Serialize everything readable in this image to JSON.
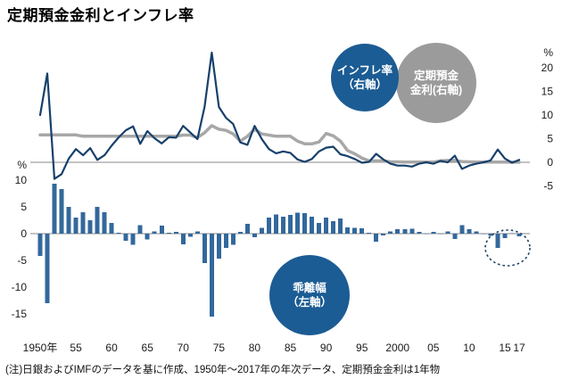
{
  "title": "定期預金金利とインフレ率",
  "note": "(注)日銀およびIMFのデータを基に作成、1950年～2017年の年次データ、定期預金金利は1年物",
  "colors": {
    "inflation_line": "#17406b",
    "deposit_line": "#a7a7a7",
    "deviation_bars": "#33689c",
    "badge_blue": "#1c5c94",
    "badge_gray": "#9b9b9b",
    "axis_line": "#8a8a8a",
    "highlight": "#1b4168"
  },
  "legend": {
    "inflation": {
      "line1": "インフレ率",
      "line2": "（右軸）"
    },
    "deposit": {
      "line1": "定期預金",
      "line2": "金利(右軸)"
    },
    "deviation": {
      "line1": "乖離幅",
      "line2": "（左軸）"
    }
  },
  "right_axis": {
    "unit": "%",
    "ticks": [
      20,
      15,
      10,
      5,
      0,
      -5
    ]
  },
  "left_axis": {
    "unit": "%",
    "ticks": [
      10,
      5,
      0,
      -5,
      -10,
      -15
    ]
  },
  "x_axis": {
    "labels": [
      {
        "year": 1950,
        "label": "1950年"
      },
      {
        "year": 1955,
        "label": "55"
      },
      {
        "year": 1960,
        "label": "60"
      },
      {
        "year": 1965,
        "label": "65"
      },
      {
        "year": 1970,
        "label": "70"
      },
      {
        "year": 1975,
        "label": "75"
      },
      {
        "year": 1980,
        "label": "80"
      },
      {
        "year": 1985,
        "label": "85"
      },
      {
        "year": 1990,
        "label": "90"
      },
      {
        "year": 1995,
        "label": "95"
      },
      {
        "year": 2000,
        "label": "2000"
      },
      {
        "year": 2005,
        "label": "05"
      },
      {
        "year": 2010,
        "label": "10"
      },
      {
        "year": 2015,
        "label": "15"
      },
      {
        "year": 2017,
        "label": "17"
      }
    ]
  },
  "chart_data": {
    "type": "line+bar",
    "title": "定期預金金利とインフレ率",
    "x": [
      1950,
      1951,
      1952,
      1953,
      1954,
      1955,
      1956,
      1957,
      1958,
      1959,
      1960,
      1961,
      1962,
      1963,
      1964,
      1965,
      1966,
      1967,
      1968,
      1969,
      1970,
      1971,
      1972,
      1973,
      1974,
      1975,
      1976,
      1977,
      1978,
      1979,
      1980,
      1981,
      1982,
      1983,
      1984,
      1985,
      1986,
      1987,
      1988,
      1989,
      1990,
      1991,
      1992,
      1993,
      1994,
      1995,
      1996,
      1997,
      1998,
      1999,
      2000,
      2001,
      2002,
      2003,
      2004,
      2005,
      2006,
      2007,
      2008,
      2009,
      2010,
      2011,
      2012,
      2013,
      2014,
      2015,
      2016,
      2017
    ],
    "right_ylim": [
      -5,
      25
    ],
    "left_ylim": [
      -17,
      10
    ],
    "series": [
      {
        "id": "inflation-line",
        "name": "インフレ率（右軸）",
        "type": "line",
        "axis": "right",
        "color": "#17406b",
        "values": [
          10.0,
          18.8,
          -3.5,
          -2.5,
          0.8,
          2.8,
          1.5,
          3.0,
          0.5,
          1.5,
          3.5,
          5.3,
          6.8,
          7.6,
          3.9,
          6.6,
          5.1,
          4.0,
          5.3,
          5.2,
          7.7,
          6.3,
          4.9,
          11.7,
          23.2,
          11.7,
          9.4,
          8.1,
          4.2,
          3.7,
          7.7,
          4.9,
          2.8,
          1.9,
          2.3,
          2.0,
          0.6,
          0.1,
          0.7,
          2.3,
          3.1,
          3.3,
          1.7,
          1.3,
          0.7,
          -0.1,
          0.1,
          1.8,
          0.6,
          -0.3,
          -0.7,
          -0.7,
          -0.9,
          -0.3,
          0.0,
          -0.3,
          0.3,
          0.0,
          1.4,
          -1.4,
          -0.7,
          -0.3,
          0.0,
          0.4,
          2.7,
          0.8,
          -0.1,
          0.5
        ]
      },
      {
        "id": "deposit-line",
        "name": "定期預金金利（右軸）",
        "type": "line",
        "axis": "right",
        "color": "#a7a7a7",
        "values": [
          5.8,
          5.8,
          5.8,
          5.8,
          5.8,
          5.8,
          5.5,
          5.5,
          5.5,
          5.5,
          5.5,
          5.5,
          5.5,
          5.5,
          5.5,
          5.5,
          5.5,
          5.5,
          5.5,
          5.5,
          5.75,
          5.75,
          5.25,
          6.25,
          7.75,
          7.0,
          6.75,
          6.0,
          4.5,
          5.5,
          7.0,
          6.0,
          5.75,
          5.5,
          5.5,
          5.5,
          4.5,
          3.9,
          3.9,
          4.3,
          6.1,
          5.6,
          4.5,
          2.5,
          1.8,
          0.9,
          0.3,
          0.3,
          0.3,
          0.1,
          0.1,
          0.05,
          0.04,
          0.04,
          0.04,
          0.04,
          0.3,
          0.4,
          0.4,
          0.15,
          0.1,
          0.05,
          0.03,
          0.03,
          0.03,
          0.03,
          0.01,
          0.01
        ]
      },
      {
        "id": "deviation-bars",
        "name": "乖離幅（左軸）",
        "type": "bar",
        "axis": "left",
        "color": "#33689c",
        "values": [
          -4.2,
          -13.0,
          9.3,
          8.3,
          5.0,
          3.0,
          4.0,
          2.5,
          5.0,
          4.0,
          2.0,
          0.2,
          -1.3,
          -2.1,
          1.6,
          -1.1,
          0.4,
          1.5,
          0.2,
          0.3,
          -2.0,
          -0.6,
          0.4,
          -5.5,
          -15.5,
          -4.7,
          -2.7,
          -2.1,
          0.3,
          1.8,
          -0.7,
          1.1,
          3.0,
          3.6,
          3.2,
          3.5,
          3.9,
          3.8,
          3.2,
          2.0,
          3.0,
          2.3,
          2.8,
          1.2,
          1.1,
          1.0,
          0.2,
          -1.5,
          -0.3,
          0.4,
          0.8,
          0.8,
          0.9,
          0.3,
          0.0,
          0.3,
          0.0,
          0.4,
          -1.0,
          1.6,
          0.8,
          0.4,
          0.0,
          -0.4,
          -2.7,
          -0.8,
          0.1,
          -0.5
        ]
      }
    ],
    "highlight": {
      "type": "dotted-ellipse",
      "x_range": [
        2013,
        2017
      ]
    }
  }
}
